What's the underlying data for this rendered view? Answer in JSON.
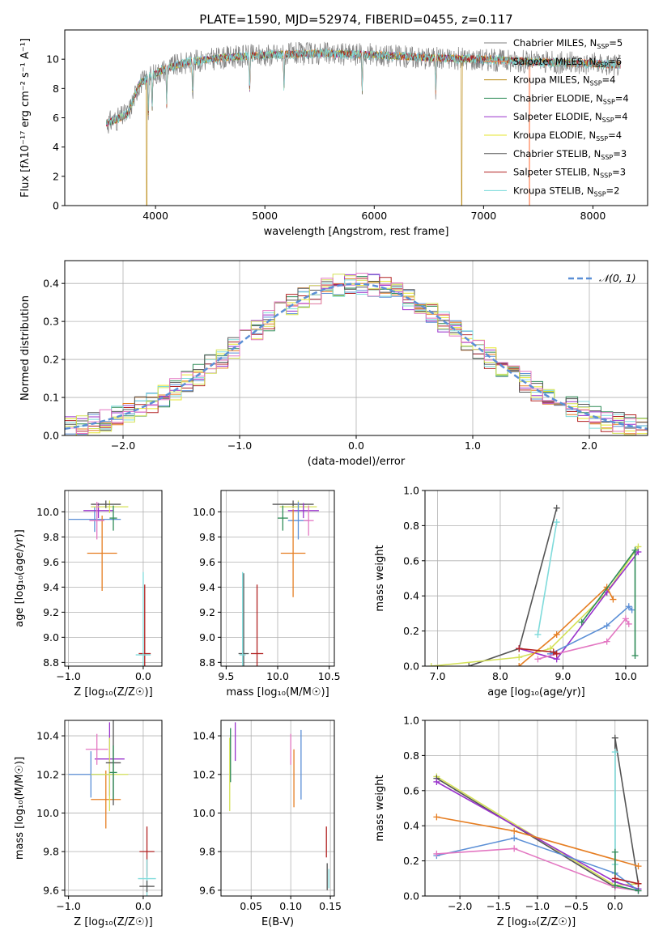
{
  "figure": {
    "title": "PLATE=1590, MJD=52974, FIBERID=0455, z=0.117"
  },
  "chart_data": [
    {
      "id": "spectrum",
      "type": "line",
      "xlabel": "wavelength [Angstrom, rest frame]",
      "ylabel": "Flux [fλ10⁻¹⁷ erg cm⁻² s⁻¹ A⁻¹]",
      "xlim": [
        3170,
        8500
      ],
      "ylim": [
        0,
        12
      ],
      "xticks": [
        4000,
        5000,
        6000,
        7000,
        8000
      ],
      "yticks": [
        0,
        2,
        4,
        6,
        8,
        10
      ],
      "grid": false,
      "legend": "top-right",
      "x_range": [
        3550,
        8250
      ],
      "data_start": 3500,
      "series": [
        {
          "name": "Chabrier MILES, N_SSP=5",
          "color": "#7f7f7f",
          "drop_at": [
            3500
          ],
          "noise": 1.6
        },
        {
          "name": "Salpeter MILES, N_SSP=6",
          "color": "#ff7f50",
          "drop_at": [
            3500,
            7420
          ],
          "noise": 0.6
        },
        {
          "name": "Kroupa MILES, N_SSP=4",
          "color": "#b8860b",
          "drop_at": [
            3920,
            6800
          ],
          "noise": 0.5
        },
        {
          "name": "Chabrier ELODIE, N_SSP=4",
          "color": "#2e8b57",
          "drop_at": [],
          "noise": 0.5
        },
        {
          "name": "Salpeter ELODIE, N_SSP=4",
          "color": "#9932cc",
          "drop_at": [],
          "noise": 0.5
        },
        {
          "name": "Kroupa ELODIE, N_SSP=4",
          "color": "#e6e62e",
          "drop_at": [],
          "noise": 0.5
        },
        {
          "name": "Chabrier STELIB, N_SSP=3",
          "color": "#555555",
          "drop_at": [],
          "noise": 0.5
        },
        {
          "name": "Salpeter STELIB, N_SSP=3",
          "color": "#b22222",
          "drop_at": [],
          "noise": 0.5
        },
        {
          "name": "Kroupa STELIB, N_SSP=2",
          "color": "#7fdbdb",
          "drop_at": [],
          "noise": 0.7
        }
      ],
      "continuum": {
        "x": [
          3500,
          3650,
          3750,
          3850,
          3950,
          4100,
          4300,
          4600,
          5000,
          5500,
          6000,
          6500,
          7000,
          7500,
          8000,
          8250
        ],
        "y": [
          5.5,
          5.9,
          6.3,
          8.3,
          8.8,
          9.4,
          9.8,
          10.1,
          10.3,
          10.4,
          10.3,
          10.1,
          10.0,
          9.8,
          9.7,
          9.6
        ]
      }
    },
    {
      "id": "residuals",
      "type": "histogram",
      "xlabel": "(data-model)/error",
      "ylabel": "Normed distribution",
      "xlim": [
        -2.5,
        2.5
      ],
      "ylim": [
        0,
        0.46
      ],
      "xticks": [
        -2,
        -1,
        0,
        1,
        2
      ],
      "yticks": [
        0.0,
        0.1,
        0.2,
        0.3,
        0.4
      ],
      "grid": true,
      "legend": "top-right",
      "gaussian_label": "𝒩(0, 1)",
      "gaussian_color": "#5b8fd6",
      "bin_width": 0.1
    },
    {
      "id": "age_vs_Z",
      "type": "errorbar",
      "xlabel": "Z [log₁₀(Z/Z☉)]",
      "ylabel": "age  [log₁₀(age/yr)]",
      "xlim": [
        -1.05,
        0.25
      ],
      "ylim": [
        8.77,
        10.17
      ],
      "xticks": [
        -1,
        0
      ],
      "yticks": [
        8.8,
        9.0,
        9.2,
        9.4,
        9.6,
        9.8,
        10.0
      ],
      "grid": true,
      "points": [
        {
          "x": -0.65,
          "y": 9.94,
          "xerr": 0.35,
          "yerr": 0.1,
          "color": "#5b8fd6"
        },
        {
          "x": -0.55,
          "y": 9.67,
          "xerr": 0.2,
          "yerr": 0.3,
          "color": "#e67e22"
        },
        {
          "x": -0.6,
          "y": 10.01,
          "xerr": 0.2,
          "yerr": 0.06,
          "color": "#9932cc"
        },
        {
          "x": -0.45,
          "y": 10.04,
          "xerr": 0.25,
          "yerr": 0.05,
          "color": "#d4e157"
        },
        {
          "x": -0.5,
          "y": 10.06,
          "xerr": 0.2,
          "yerr": 0.03,
          "color": "#555555"
        },
        {
          "x": -0.62,
          "y": 9.93,
          "xerr": 0.1,
          "yerr": 0.15,
          "color": "#e377c2"
        },
        {
          "x": -0.4,
          "y": 9.95,
          "xerr": 0.05,
          "yerr": 0.1,
          "color": "#2e8b57"
        },
        {
          "x": 0.02,
          "y": 8.87,
          "xerr": 0.08,
          "yerr": 0.55,
          "color": "#b22222"
        },
        {
          "x": 0.0,
          "y": 8.86,
          "xerr": 0.1,
          "yerr": 0.66,
          "color": "#7fdbdb"
        }
      ]
    },
    {
      "id": "age_vs_mass",
      "type": "errorbar",
      "xlabel": "mass [log₁₀(M/M☉)]",
      "ylabel": "",
      "xlim": [
        9.45,
        10.55
      ],
      "ylim": [
        8.77,
        10.17
      ],
      "xticks": [
        9.5,
        10.0,
        10.5
      ],
      "yticks": [
        8.8,
        9.0,
        9.2,
        9.4,
        9.6,
        9.8,
        10.0
      ],
      "grid": true,
      "points": [
        {
          "x": 10.15,
          "y": 10.06,
          "xerr": 0.2,
          "yerr": 0.03,
          "color": "#555555"
        },
        {
          "x": 10.2,
          "y": 10.04,
          "xerr": 0.18,
          "yerr": 0.05,
          "color": "#d4e157"
        },
        {
          "x": 10.25,
          "y": 10.01,
          "xerr": 0.15,
          "yerr": 0.06,
          "color": "#9932cc"
        },
        {
          "x": 10.2,
          "y": 9.93,
          "xerr": 0.1,
          "yerr": 0.15,
          "color": "#5b8fd6"
        },
        {
          "x": 10.15,
          "y": 9.67,
          "xerr": 0.12,
          "yerr": 0.35,
          "color": "#e67e22"
        },
        {
          "x": 10.3,
          "y": 9.93,
          "xerr": 0.05,
          "yerr": 0.12,
          "color": "#e377c2"
        },
        {
          "x": 10.05,
          "y": 9.95,
          "xerr": 0.05,
          "yerr": 0.1,
          "color": "#2e8b57"
        },
        {
          "x": 9.67,
          "y": 8.87,
          "xerr": 0.05,
          "yerr": 0.64,
          "color": "#555555"
        },
        {
          "x": 9.66,
          "y": 8.86,
          "xerr": 0.03,
          "yerr": 0.66,
          "color": "#7fdbdb"
        },
        {
          "x": 9.8,
          "y": 8.87,
          "xerr": 0.06,
          "yerr": 0.55,
          "color": "#b22222"
        }
      ]
    },
    {
      "id": "massweight_vs_age",
      "type": "line",
      "xlabel": "age  [log₁₀(age/yr)]",
      "ylabel": "mass weight",
      "xlim": [
        6.8,
        10.35
      ],
      "ylim": [
        0,
        1.0
      ],
      "xticks": [
        7,
        8,
        9,
        10
      ],
      "yticks": [
        0.0,
        0.2,
        0.4,
        0.6,
        0.8,
        1.0
      ],
      "grid": true,
      "series": [
        {
          "color": "#555555",
          "x": [
            7.5,
            8.3,
            8.9
          ],
          "y": [
            0.0,
            0.1,
            0.9
          ]
        },
        {
          "color": "#7fdbdb",
          "x": [
            8.6,
            8.9
          ],
          "y": [
            0.18,
            0.82
          ]
        },
        {
          "color": "#d4e157",
          "x": [
            6.9,
            8.3,
            8.8,
            9.7,
            10.2
          ],
          "y": [
            0.0,
            0.05,
            0.1,
            0.42,
            0.68
          ]
        },
        {
          "color": "#9932cc",
          "x": [
            8.3,
            8.9,
            9.7,
            10.2
          ],
          "y": [
            0.1,
            0.04,
            0.42,
            0.65
          ]
        },
        {
          "color": "#e67e22",
          "x": [
            8.3,
            8.9,
            9.7,
            9.8
          ],
          "y": [
            0.0,
            0.18,
            0.45,
            0.38
          ]
        },
        {
          "color": "#5b8fd6",
          "x": [
            8.8,
            9.7,
            10.05,
            10.1
          ],
          "y": [
            0.07,
            0.23,
            0.34,
            0.32
          ]
        },
        {
          "color": "#e377c2",
          "x": [
            8.6,
            8.9,
            9.7,
            10.0,
            10.05
          ],
          "y": [
            0.04,
            0.07,
            0.14,
            0.27,
            0.24
          ]
        },
        {
          "color": "#2e8b57",
          "x": [
            9.3,
            10.15,
            10.15
          ],
          "y": [
            0.25,
            0.66,
            0.06
          ]
        },
        {
          "color": "#b22222",
          "x": [
            8.3,
            8.85,
            8.9
          ],
          "y": [
            0.1,
            0.08,
            0.07
          ]
        }
      ]
    },
    {
      "id": "mass_vs_Z",
      "type": "errorbar",
      "xlabel": "Z [log₁₀(Z/Z☉)]",
      "ylabel": "mass [log₁₀(M/M☉)]",
      "xlim": [
        -1.05,
        0.25
      ],
      "ylim": [
        9.57,
        10.48
      ],
      "xticks": [
        -1,
        0
      ],
      "yticks": [
        9.6,
        9.8,
        10.0,
        10.2,
        10.4
      ],
      "grid": true,
      "points": [
        {
          "x": -0.7,
          "y": 10.2,
          "xerr": 0.3,
          "yerr": 0.12,
          "color": "#5b8fd6"
        },
        {
          "x": -0.5,
          "y": 10.07,
          "xerr": 0.2,
          "yerr": 0.15,
          "color": "#e67e22"
        },
        {
          "x": -0.45,
          "y": 10.28,
          "xerr": 0.2,
          "yerr": 0.19,
          "color": "#9932cc"
        },
        {
          "x": -0.45,
          "y": 10.2,
          "xerr": 0.25,
          "yerr": 0.19,
          "color": "#d4e157"
        },
        {
          "x": -0.4,
          "y": 10.26,
          "xerr": 0.1,
          "yerr": 0.22,
          "color": "#555555"
        },
        {
          "x": -0.62,
          "y": 10.33,
          "xerr": 0.15,
          "yerr": 0.08,
          "color": "#e377c2"
        },
        {
          "x": -0.4,
          "y": 10.21,
          "xerr": 0.05,
          "yerr": 0.14,
          "color": "#2e8b57"
        },
        {
          "x": 0.05,
          "y": 9.8,
          "xerr": 0.1,
          "yerr": 0.13,
          "color": "#b22222"
        },
        {
          "x": 0.05,
          "y": 9.66,
          "xerr": 0.12,
          "yerr": 0.1,
          "color": "#7fdbdb"
        },
        {
          "x": 0.05,
          "y": 9.62,
          "xerr": 0.1,
          "yerr": 0.03,
          "color": "#555555"
        }
      ]
    },
    {
      "id": "mass_vs_EBV",
      "type": "errorbar",
      "xlabel": "E(B-V)",
      "ylabel": "",
      "xlim": [
        0.012,
        0.155
      ],
      "ylim": [
        9.57,
        10.48
      ],
      "xticks": [
        0.05,
        0.1,
        0.15
      ],
      "ytick_labels_prec": 1,
      "yticks": [
        9.6,
        9.8,
        10.0,
        10.2,
        10.4
      ],
      "grid": true,
      "points": [
        {
          "x": 0.023,
          "y": 10.2,
          "yerr": 0.19,
          "color": "#d4e157"
        },
        {
          "x": 0.024,
          "y": 10.3,
          "yerr": 0.14,
          "color": "#2e8b57"
        },
        {
          "x": 0.03,
          "y": 10.37,
          "yerr": 0.1,
          "color": "#9932cc"
        },
        {
          "x": 0.1,
          "y": 10.33,
          "yerr": 0.08,
          "color": "#e377c2"
        },
        {
          "x": 0.104,
          "y": 10.18,
          "yerr": 0.15,
          "color": "#e67e22"
        },
        {
          "x": 0.113,
          "y": 10.25,
          "yerr": 0.18,
          "color": "#5b8fd6"
        },
        {
          "x": 0.145,
          "y": 9.85,
          "yerr": 0.08,
          "color": "#b22222"
        },
        {
          "x": 0.146,
          "y": 9.67,
          "yerr": 0.07,
          "color": "#555555"
        },
        {
          "x": 0.148,
          "y": 9.66,
          "yerr": 0.05,
          "color": "#7fdbdb"
        }
      ]
    },
    {
      "id": "massweight_vs_Z",
      "type": "line",
      "xlabel": "Z [log₁₀(Z/Z☉)]",
      "ylabel": "mass weight",
      "xlim": [
        -2.45,
        0.42
      ],
      "ylim": [
        0,
        1.0
      ],
      "xticks": [
        -2.0,
        -1.5,
        -1.0,
        -0.5,
        0.0
      ],
      "yticks": [
        0.0,
        0.2,
        0.4,
        0.6,
        0.8,
        1.0
      ],
      "grid": true,
      "series": [
        {
          "color": "#d4e157",
          "x": [
            -2.3,
            0.0,
            0.3
          ],
          "y": [
            0.68,
            0.06,
            0.07
          ]
        },
        {
          "color": "#555555",
          "x": [
            -2.3,
            0.0,
            0.0,
            0.3
          ],
          "y": [
            0.67,
            0.05,
            0.9,
            0.07
          ]
        },
        {
          "color": "#9932cc",
          "x": [
            -2.3,
            0.0,
            0.3
          ],
          "y": [
            0.65,
            0.08,
            0.04
          ]
        },
        {
          "color": "#e67e22",
          "x": [
            -2.3,
            -1.3,
            0.3
          ],
          "y": [
            0.45,
            0.37,
            0.17
          ]
        },
        {
          "color": "#5b8fd6",
          "x": [
            -2.3,
            -1.3,
            0.0,
            0.3
          ],
          "y": [
            0.23,
            0.33,
            0.13,
            0.03
          ]
        },
        {
          "color": "#e377c2",
          "x": [
            -2.3,
            -1.3,
            0.0,
            0.3
          ],
          "y": [
            0.24,
            0.27,
            0.05,
            0.03
          ]
        },
        {
          "color": "#7fdbdb",
          "x": [
            0.0,
            0.0
          ],
          "y": [
            0.82,
            0.18
          ]
        },
        {
          "color": "#2e8b57",
          "x": [
            0.0,
            0.0,
            0.3
          ],
          "y": [
            0.25,
            0.06,
            0.03
          ]
        },
        {
          "color": "#b22222",
          "x": [
            0.0,
            0.3
          ],
          "y": [
            0.1,
            0.07
          ]
        }
      ]
    }
  ]
}
